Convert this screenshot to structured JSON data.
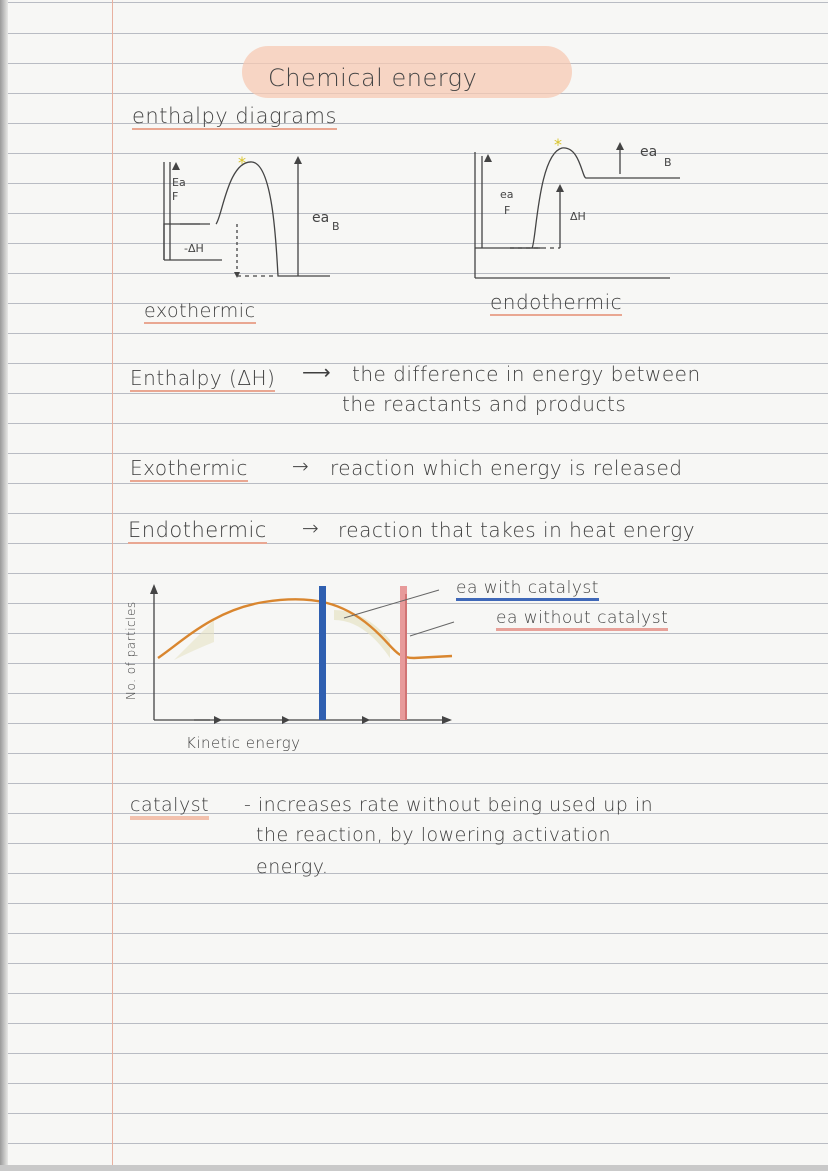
{
  "title": "Chemical energy",
  "subtitle": "enthalpy diagrams",
  "exo_diagram": {
    "caption": "exothermic",
    "ea_forward": "Ea\nF",
    "ea_forward_1": "Ea",
    "ea_forward_2": "F",
    "delta_h": "-ΔH",
    "ea_back": "ea",
    "ea_back_sub": "B"
  },
  "endo_diagram": {
    "caption": "endothermic",
    "ea_forward_1": "ea",
    "ea_forward_2": "F",
    "delta_h": "ΔH",
    "ea_back": "ea",
    "ea_back_sub": "B"
  },
  "definitions": {
    "enthalpy_term": "Enthalpy (ΔH)",
    "enthalpy_line1": "the difference in energy between",
    "enthalpy_line2": "the reactants and products",
    "exo_term": "Exothermic",
    "exo_def": "reaction which energy is released",
    "endo_term": "Endothermic",
    "endo_def": "reaction that takes in heat energy"
  },
  "distribution_graph": {
    "y_label": "No. of particles",
    "x_label": "Kinetic energy",
    "legend_catalyst": "ea with catalyst",
    "legend_no_catalyst": "ea without catalyst",
    "colors": {
      "curve": "#d9862f",
      "catalyst_line": "#2f5fb0",
      "no_catalyst_line": "#e79a9a"
    }
  },
  "catalyst_note": {
    "term": "catalyst",
    "line1": "- increases rate without being used up in",
    "line2": "the reaction, by lowering activation",
    "line3": "energy."
  }
}
